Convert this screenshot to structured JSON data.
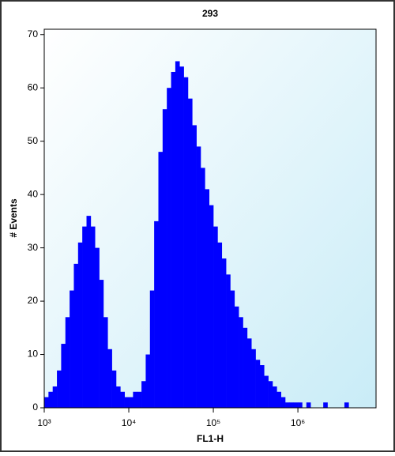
{
  "chart_data": {
    "type": "histogram",
    "title": "293",
    "x_label": "FL1-H",
    "y_label": "# Events",
    "x_scale": "log",
    "color": "#0000ff",
    "bins": [
      1000,
      1122,
      1259,
      1413,
      1585,
      1778,
      1995,
      2239,
      2512,
      2818,
      3162,
      3548,
      3981,
      4467,
      5012,
      5623,
      6310,
      7079,
      7943,
      8913,
      10000,
      11220,
      12590,
      14130,
      15850,
      17780,
      19950,
      22390,
      25120,
      28180,
      31620,
      35480,
      39810,
      44670,
      50120,
      56230,
      63100,
      70790,
      79430,
      89130,
      100000,
      112200,
      125900,
      141300,
      158500,
      177800,
      199500,
      223900,
      251200,
      281800,
      316200,
      354800,
      398100,
      446700,
      501200,
      562300,
      631000,
      707900,
      794300,
      891300,
      1000000,
      1122000,
      1259000,
      1413000,
      1585000,
      1778000,
      1995000,
      2239000,
      2512000,
      2818000,
      3162000,
      3548000,
      3981000,
      4467000,
      5012000
    ],
    "values": [
      2,
      3,
      4,
      7,
      12,
      17,
      22,
      27,
      31,
      34,
      36,
      34,
      30,
      24,
      17,
      11,
      7,
      4,
      3,
      2,
      2,
      3,
      3,
      5,
      10,
      22,
      35,
      48,
      56,
      60,
      63,
      65,
      64,
      62,
      58,
      53,
      49,
      45,
      41,
      38,
      34,
      31,
      28,
      25,
      22,
      19,
      17,
      15,
      13,
      11,
      9,
      8,
      6,
      5,
      4,
      3,
      2,
      1,
      1,
      1,
      1,
      0,
      1,
      0,
      0,
      0,
      1,
      0,
      0,
      0,
      0,
      1,
      0,
      0
    ],
    "xlim": [
      1000,
      8400000
    ],
    "xticks": [
      {
        "value": 1000,
        "label": "10³"
      },
      {
        "value": 10000,
        "label": "10⁴"
      },
      {
        "value": 100000,
        "label": "10⁵"
      },
      {
        "value": 1000000,
        "label": "10⁶"
      }
    ],
    "ylim": [
      0,
      71
    ],
    "yticks": [
      0,
      10,
      20,
      30,
      40,
      50,
      60,
      70
    ]
  }
}
